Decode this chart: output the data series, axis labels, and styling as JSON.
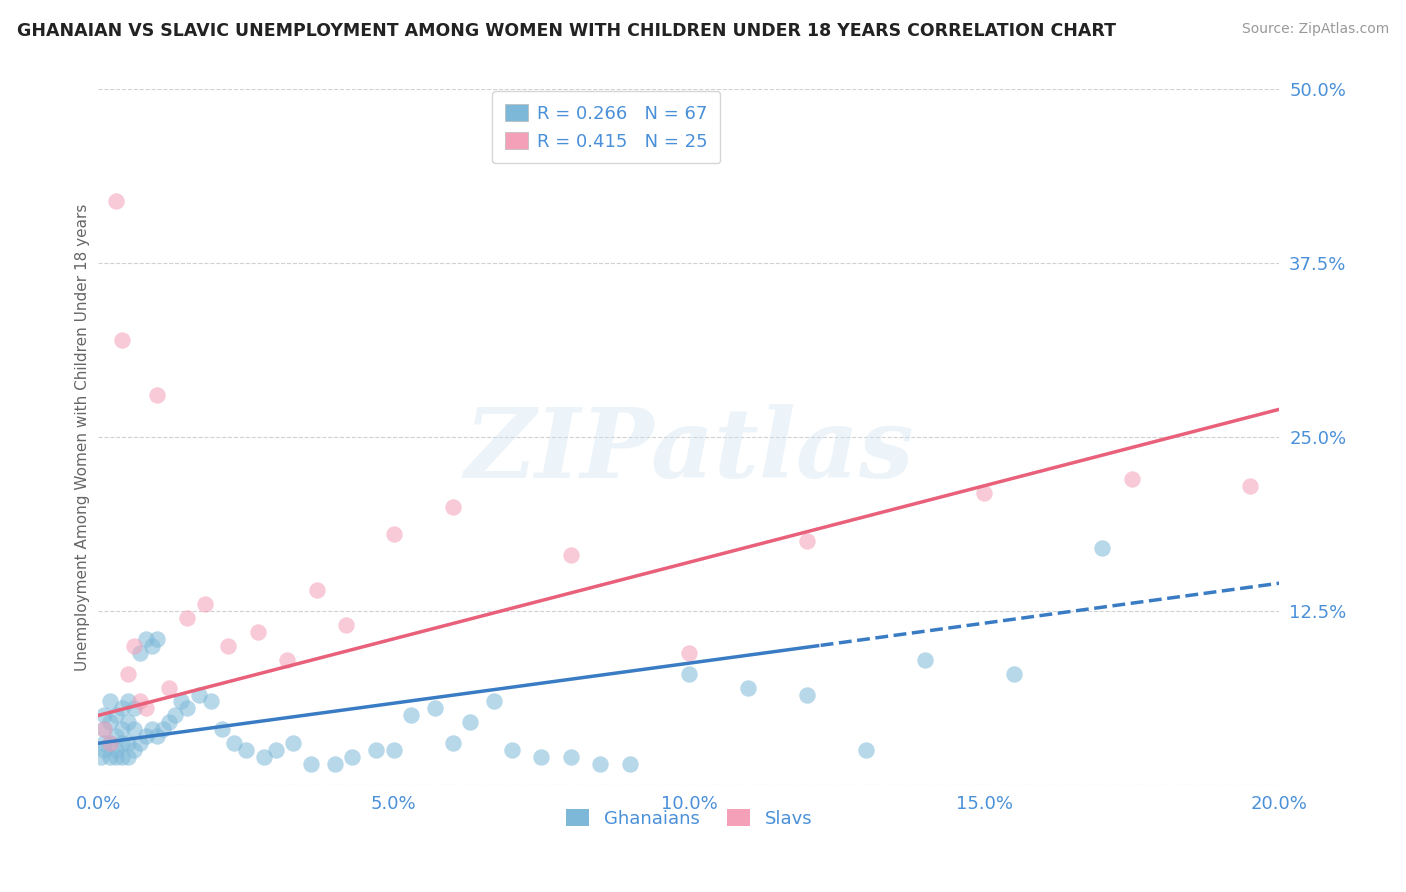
{
  "title": "GHANAIAN VS SLAVIC UNEMPLOYMENT AMONG WOMEN WITH CHILDREN UNDER 18 YEARS CORRELATION CHART",
  "source": "Source: ZipAtlas.com",
  "ylabel": "Unemployment Among Women with Children Under 18 years",
  "r_ghanaian": 0.266,
  "n_ghanaian": 67,
  "r_slavic": 0.415,
  "n_slavic": 25,
  "xmin": 0.0,
  "xmax": 0.2,
  "ymin": 0.0,
  "ymax": 0.5,
  "yticks": [
    0.0,
    0.125,
    0.25,
    0.375,
    0.5
  ],
  "ytick_labels": [
    "",
    "12.5%",
    "25.0%",
    "37.5%",
    "50.0%"
  ],
  "xticks": [
    0.0,
    0.05,
    0.1,
    0.15,
    0.2
  ],
  "xtick_labels": [
    "0.0%",
    "5.0%",
    "10.0%",
    "15.0%",
    "20.0%"
  ],
  "color_ghanaian": "#7db8d8",
  "color_slavic": "#f4a0b8",
  "color_line_ghanaian": "#3a7cc4",
  "color_line_slavic": "#e8607a",
  "color_text": "#4a90d9",
  "watermark": "ZIPatlas",
  "background_color": "#ffffff",
  "line_g_x0": 0.0,
  "line_g_y0": 0.03,
  "line_g_x1": 0.2,
  "line_g_y1": 0.145,
  "line_g_dash_start": 0.122,
  "line_s_x0": 0.0,
  "line_s_y0": 0.05,
  "line_s_x1": 0.2,
  "line_s_y1": 0.27,
  "ghanaian_x": [
    0.0005,
    0.001,
    0.001,
    0.001,
    0.001,
    0.002,
    0.002,
    0.002,
    0.002,
    0.003,
    0.003,
    0.003,
    0.003,
    0.004,
    0.004,
    0.004,
    0.004,
    0.005,
    0.005,
    0.005,
    0.005,
    0.006,
    0.006,
    0.006,
    0.007,
    0.007,
    0.008,
    0.008,
    0.009,
    0.009,
    0.01,
    0.01,
    0.011,
    0.012,
    0.013,
    0.014,
    0.015,
    0.017,
    0.019,
    0.021,
    0.023,
    0.025,
    0.028,
    0.03,
    0.033,
    0.036,
    0.04,
    0.043,
    0.047,
    0.05,
    0.053,
    0.057,
    0.06,
    0.063,
    0.067,
    0.07,
    0.075,
    0.08,
    0.085,
    0.09,
    0.1,
    0.11,
    0.12,
    0.13,
    0.14,
    0.155,
    0.17
  ],
  "ghanaian_y": [
    0.02,
    0.025,
    0.03,
    0.04,
    0.05,
    0.02,
    0.03,
    0.045,
    0.06,
    0.02,
    0.025,
    0.035,
    0.05,
    0.02,
    0.03,
    0.04,
    0.055,
    0.02,
    0.03,
    0.045,
    0.06,
    0.025,
    0.04,
    0.055,
    0.03,
    0.095,
    0.035,
    0.105,
    0.04,
    0.1,
    0.035,
    0.105,
    0.04,
    0.045,
    0.05,
    0.06,
    0.055,
    0.065,
    0.06,
    0.04,
    0.03,
    0.025,
    0.02,
    0.025,
    0.03,
    0.015,
    0.015,
    0.02,
    0.025,
    0.025,
    0.05,
    0.055,
    0.03,
    0.045,
    0.06,
    0.025,
    0.02,
    0.02,
    0.015,
    0.015,
    0.08,
    0.07,
    0.065,
    0.025,
    0.09,
    0.08,
    0.17
  ],
  "slavic_x": [
    0.001,
    0.002,
    0.003,
    0.004,
    0.005,
    0.006,
    0.007,
    0.008,
    0.01,
    0.012,
    0.015,
    0.018,
    0.022,
    0.027,
    0.032,
    0.037,
    0.042,
    0.05,
    0.06,
    0.08,
    0.1,
    0.12,
    0.15,
    0.175,
    0.195
  ],
  "slavic_y": [
    0.04,
    0.03,
    0.42,
    0.32,
    0.08,
    0.1,
    0.06,
    0.055,
    0.28,
    0.07,
    0.12,
    0.13,
    0.1,
    0.11,
    0.09,
    0.14,
    0.115,
    0.18,
    0.2,
    0.165,
    0.095,
    0.175,
    0.21,
    0.22,
    0.215
  ]
}
